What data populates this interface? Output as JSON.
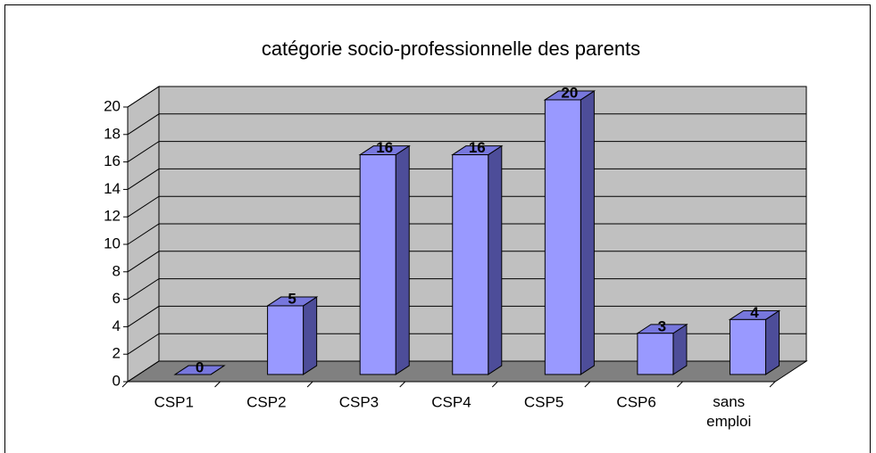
{
  "chart_data": {
    "type": "bar3d",
    "title": "catégorie socio-professionnelle des parents",
    "categories": [
      "CSP1",
      "CSP2",
      "CSP3",
      "CSP4",
      "CSP5",
      "CSP6",
      "sans emploi"
    ],
    "values": [
      0,
      5,
      16,
      16,
      20,
      3,
      4
    ],
    "color": "#9999ff",
    "ylim": [
      0,
      20
    ],
    "yticks": [
      0,
      2,
      4,
      6,
      8,
      10,
      12,
      14,
      16,
      18,
      20
    ],
    "grid": true
  }
}
